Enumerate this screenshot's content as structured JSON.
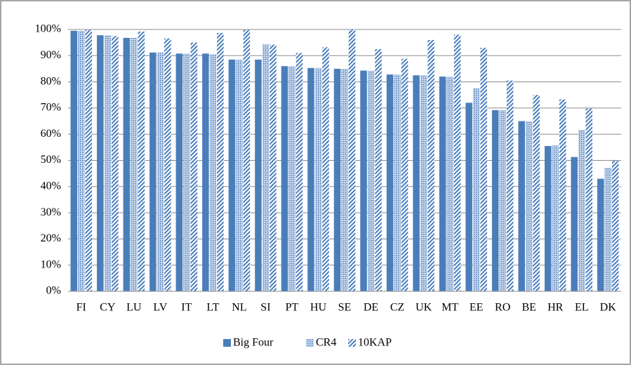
{
  "chart_data": {
    "type": "bar",
    "categories": [
      "FI",
      "CY",
      "LU",
      "LV",
      "IT",
      "LT",
      "NL",
      "SI",
      "PT",
      "HU",
      "SE",
      "DE",
      "CZ",
      "UK",
      "MT",
      "EE",
      "RO",
      "BE",
      "HR",
      "EL",
      "DK"
    ],
    "series": [
      {
        "name": "Big Four",
        "color": "#4a7ebb",
        "pattern": "solid",
        "values": [
          99.5,
          97.8,
          96.8,
          91.2,
          90.8,
          90.8,
          88.5,
          88.5,
          86,
          85.3,
          85,
          84.3,
          82.8,
          82.5,
          82,
          72,
          69.2,
          65,
          55.5,
          51.3,
          43
        ]
      },
      {
        "name": "CR4",
        "color": "#4a7ebb",
        "pattern": "dots",
        "values": [
          99.5,
          97.8,
          96.8,
          91.2,
          90.8,
          90.5,
          88.5,
          94.3,
          86,
          85.3,
          85,
          84.3,
          82.8,
          82.5,
          82,
          77.5,
          69.2,
          65,
          55.7,
          61.7,
          47.2
        ]
      },
      {
        "name": "10KAP",
        "color": "#4a7ebb",
        "pattern": "diagonal",
        "values": [
          99.8,
          97.5,
          99.2,
          96.6,
          95,
          98.7,
          99.8,
          94.2,
          91,
          93.2,
          100,
          92.5,
          88.8,
          96,
          98,
          93,
          80.5,
          75,
          73.3,
          69.8,
          49.8
        ]
      }
    ],
    "ylim": [
      0,
      100
    ],
    "yticks": [
      {
        "value": 0,
        "label": "0%"
      },
      {
        "value": 10,
        "label": "10%"
      },
      {
        "value": 20,
        "label": "20%"
      },
      {
        "value": 30,
        "label": "30%"
      },
      {
        "value": 40,
        "label": "40%"
      },
      {
        "value": 50,
        "label": "50%"
      },
      {
        "value": 60,
        "label": "60%"
      },
      {
        "value": 70,
        "label": "70%"
      },
      {
        "value": 80,
        "label": "80%"
      },
      {
        "value": 90,
        "label": "90%"
      },
      {
        "value": 100,
        "label": "100%"
      }
    ],
    "grid": true,
    "legend": "bottom"
  }
}
